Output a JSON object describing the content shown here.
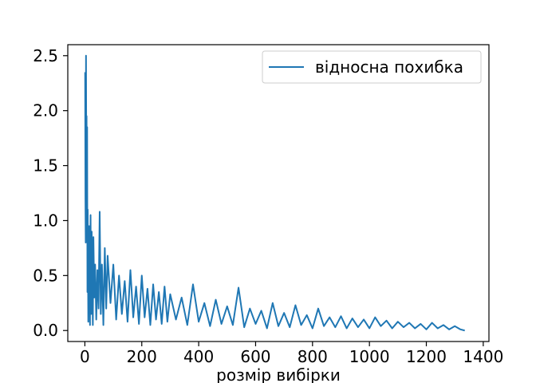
{
  "chart_data": {
    "type": "line",
    "title": "",
    "xlabel": "розмір вибірки",
    "ylabel": "",
    "xlim": [
      -60,
      1420
    ],
    "ylim": [
      -0.1,
      2.6
    ],
    "x_ticks": [
      0,
      200,
      400,
      600,
      800,
      1000,
      1200,
      1400
    ],
    "y_ticks": [
      0.0,
      0.5,
      1.0,
      1.5,
      2.0,
      2.5
    ],
    "x_tick_labels": [
      "0",
      "200",
      "400",
      "600",
      "800",
      "1000",
      "1200",
      "1400"
    ],
    "y_tick_labels": [
      "0.0",
      "0.5",
      "1.0",
      "1.5",
      "2.0",
      "2.5"
    ],
    "grid": false,
    "legend_position": "top-right",
    "series": [
      {
        "name": "відносна похибка",
        "color": "#1f77b4",
        "x": [
          1,
          2,
          3,
          4,
          5,
          6,
          7,
          8,
          9,
          10,
          11,
          12,
          13,
          14,
          15,
          16,
          17,
          18,
          19,
          20,
          22,
          24,
          26,
          28,
          30,
          33,
          36,
          40,
          44,
          48,
          52,
          56,
          60,
          65,
          70,
          75,
          80,
          90,
          100,
          110,
          120,
          130,
          140,
          150,
          160,
          170,
          180,
          190,
          200,
          210,
          220,
          230,
          240,
          250,
          260,
          270,
          280,
          290,
          300,
          320,
          340,
          360,
          380,
          400,
          420,
          440,
          460,
          480,
          500,
          520,
          540,
          560,
          580,
          600,
          620,
          640,
          660,
          680,
          700,
          720,
          740,
          760,
          780,
          800,
          820,
          840,
          860,
          880,
          900,
          920,
          940,
          960,
          980,
          1000,
          1020,
          1040,
          1060,
          1080,
          1100,
          1120,
          1140,
          1160,
          1180,
          1200,
          1220,
          1240,
          1260,
          1280,
          1300,
          1320,
          1335
        ],
        "y": [
          2.35,
          1.2,
          0.8,
          2.5,
          1.6,
          1.95,
          0.9,
          1.85,
          0.35,
          1.1,
          0.6,
          0.08,
          0.75,
          0.3,
          0.95,
          0.2,
          0.5,
          0.05,
          0.7,
          1.05,
          0.15,
          0.9,
          0.4,
          0.05,
          0.85,
          0.3,
          0.6,
          0.1,
          0.55,
          0.2,
          1.08,
          0.15,
          0.6,
          0.05,
          0.75,
          0.2,
          0.68,
          0.25,
          0.6,
          0.1,
          0.5,
          0.15,
          0.45,
          0.08,
          0.55,
          0.12,
          0.4,
          0.06,
          0.5,
          0.12,
          0.38,
          0.05,
          0.42,
          0.1,
          0.35,
          0.06,
          0.4,
          0.08,
          0.33,
          0.1,
          0.3,
          0.05,
          0.42,
          0.08,
          0.25,
          0.04,
          0.28,
          0.06,
          0.22,
          0.05,
          0.39,
          0.03,
          0.2,
          0.06,
          0.18,
          0.02,
          0.25,
          0.04,
          0.16,
          0.03,
          0.23,
          0.05,
          0.14,
          0.02,
          0.2,
          0.04,
          0.12,
          0.03,
          0.13,
          0.02,
          0.11,
          0.03,
          0.1,
          0.02,
          0.12,
          0.04,
          0.09,
          0.02,
          0.08,
          0.03,
          0.07,
          0.02,
          0.06,
          0.01,
          0.07,
          0.02,
          0.05,
          0.01,
          0.04,
          0.01,
          0.0
        ]
      }
    ]
  }
}
